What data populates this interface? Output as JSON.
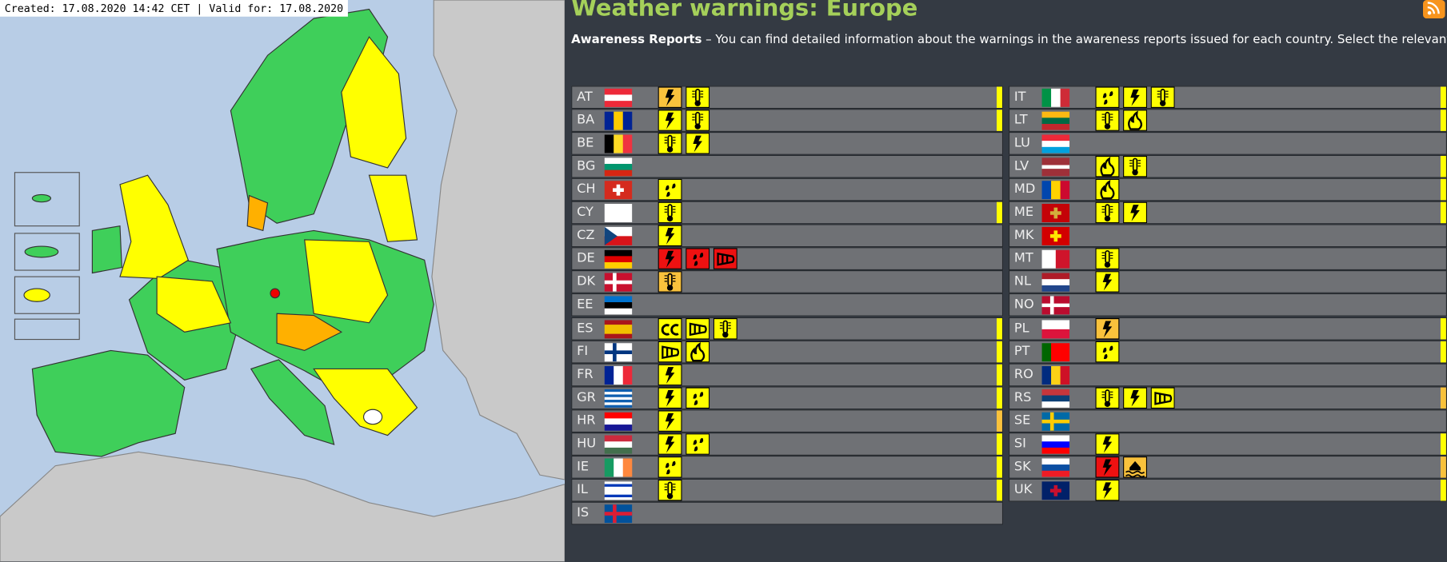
{
  "map": {
    "created_label": "Created: 17.08.2020 14:42 CET | Valid for: 17.08.2020"
  },
  "header": {
    "title": "Weather warnings: Europe",
    "intro_bold": "Awareness Reports",
    "intro_text": "– You can find detailed information about the warnings in the awareness reports issued for each country. Select the relevant country."
  },
  "columns": [
    [
      {
        "code": "AT",
        "flag": {
          "dir": "h",
          "colors": [
            "#ed2939",
            "#ffffff",
            "#ed2939"
          ]
        },
        "warnings": [
          {
            "icon": "lightning",
            "color": "#f9c23c"
          },
          {
            "icon": "thermometer",
            "color": "#ffff00"
          }
        ],
        "bar": "#ffff00"
      },
      {
        "code": "BA",
        "flag": {
          "dir": "v",
          "colors": [
            "#002395",
            "#fecb00",
            "#002395"
          ]
        },
        "warnings": [
          {
            "icon": "lightning",
            "color": "#ffff00"
          },
          {
            "icon": "thermometer",
            "color": "#ffff00"
          }
        ],
        "bar": "#ffff00"
      },
      {
        "code": "BE",
        "flag": {
          "dir": "v",
          "colors": [
            "#000000",
            "#fdda24",
            "#ef3340"
          ]
        },
        "warnings": [
          {
            "icon": "thermometer",
            "color": "#ffff00"
          },
          {
            "icon": "lightning",
            "color": "#ffff00"
          }
        ]
      },
      {
        "code": "BG",
        "flag": {
          "dir": "h",
          "colors": [
            "#ffffff",
            "#00966e",
            "#d62612"
          ]
        },
        "warnings": []
      },
      {
        "code": "CH",
        "flag": {
          "dir": "h",
          "colors": [
            "#d52b1e"
          ],
          "cross": "#ffffff",
          "cross_style": "center"
        },
        "warnings": [
          {
            "icon": "rain",
            "color": "#ffff00"
          }
        ]
      },
      {
        "code": "CY",
        "flag": {
          "dir": "h",
          "colors": [
            "#ffffff"
          ]
        },
        "warnings": [
          {
            "icon": "thermometer",
            "color": "#ffff00"
          }
        ],
        "bar": "#ffff00"
      },
      {
        "code": "CZ",
        "flag": {
          "dir": "h",
          "colors": [
            "#ffffff",
            "#d7141a"
          ],
          "triangle": "#11457e"
        },
        "warnings": [
          {
            "icon": "lightning",
            "color": "#ffff00"
          }
        ]
      },
      {
        "code": "DE",
        "flag": {
          "dir": "h",
          "colors": [
            "#000000",
            "#dd0000",
            "#ffce00"
          ]
        },
        "warnings": [
          {
            "icon": "lightning",
            "color": "#ee1111"
          },
          {
            "icon": "rain",
            "color": "#ee1111"
          },
          {
            "icon": "wind",
            "color": "#ee1111"
          }
        ]
      },
      {
        "code": "DK",
        "flag": {
          "dir": "h",
          "colors": [
            "#c8102e"
          ],
          "cross": "#ffffff",
          "cross_style": "nordic"
        },
        "warnings": [
          {
            "icon": "thermometer",
            "color": "#f9c23c"
          }
        ]
      },
      {
        "code": "EE",
        "flag": {
          "dir": "h",
          "colors": [
            "#0072ce",
            "#000000",
            "#ffffff"
          ]
        },
        "warnings": []
      },
      {
        "code": "ES",
        "flag": {
          "dir": "h",
          "colors": [
            "#aa151b",
            "#f1bf00",
            "#f1bf00",
            "#aa151b"
          ]
        },
        "warnings": [
          {
            "icon": "coastal",
            "color": "#ffff00"
          },
          {
            "icon": "wind",
            "color": "#ffff00"
          },
          {
            "icon": "thermometer",
            "color": "#ffff00"
          }
        ],
        "bar": "#ffff00"
      },
      {
        "code": "FI",
        "flag": {
          "dir": "h",
          "colors": [
            "#ffffff"
          ],
          "cross": "#003580",
          "cross_style": "nordic"
        },
        "warnings": [
          {
            "icon": "wind",
            "color": "#ffff00"
          },
          {
            "icon": "fire",
            "color": "#ffff00"
          }
        ],
        "bar": "#ffff00"
      },
      {
        "code": "FR",
        "flag": {
          "dir": "v",
          "colors": [
            "#002395",
            "#ffffff",
            "#ed2939"
          ]
        },
        "warnings": [
          {
            "icon": "lightning",
            "color": "#ffff00"
          }
        ],
        "bar": "#ffff00"
      },
      {
        "code": "GR",
        "flag": {
          "dir": "h",
          "colors": [
            "#0d5eaf",
            "#ffffff",
            "#0d5eaf",
            "#ffffff",
            "#0d5eaf",
            "#ffffff",
            "#0d5eaf"
          ]
        },
        "warnings": [
          {
            "icon": "lightning",
            "color": "#ffff00"
          },
          {
            "icon": "rain",
            "color": "#ffff00"
          }
        ],
        "bar": "#ffff00"
      },
      {
        "code": "HR",
        "flag": {
          "dir": "h",
          "colors": [
            "#ff0000",
            "#ffffff",
            "#171796"
          ]
        },
        "warnings": [
          {
            "icon": "lightning",
            "color": "#ffff00"
          }
        ],
        "bar": "#f9c23c"
      },
      {
        "code": "HU",
        "flag": {
          "dir": "h",
          "colors": [
            "#cd2a3e",
            "#ffffff",
            "#436f4d"
          ]
        },
        "warnings": [
          {
            "icon": "lightning",
            "color": "#ffff00"
          },
          {
            "icon": "rain",
            "color": "#ffff00"
          }
        ],
        "bar": "#ffff00"
      },
      {
        "code": "IE",
        "flag": {
          "dir": "v",
          "colors": [
            "#169b62",
            "#ffffff",
            "#ff883e"
          ]
        },
        "warnings": [
          {
            "icon": "rain",
            "color": "#ffff00"
          }
        ],
        "bar": "#ffff00"
      },
      {
        "code": "IL",
        "flag": {
          "dir": "h",
          "colors": [
            "#ffffff",
            "#0038b8",
            "#ffffff",
            "#ffffff",
            "#ffffff",
            "#0038b8",
            "#ffffff"
          ]
        },
        "warnings": [
          {
            "icon": "thermometer",
            "color": "#ffff00"
          }
        ],
        "bar": "#ffff00"
      },
      {
        "code": "IS",
        "flag": {
          "dir": "h",
          "colors": [
            "#02529c"
          ],
          "cross": "#dc1e35",
          "cross_style": "nordic"
        },
        "warnings": []
      }
    ],
    [
      {
        "code": "IT",
        "flag": {
          "dir": "v",
          "colors": [
            "#009246",
            "#ffffff",
            "#ce2b37"
          ]
        },
        "warnings": [
          {
            "icon": "rain",
            "color": "#ffff00"
          },
          {
            "icon": "lightning",
            "color": "#ffff00"
          },
          {
            "icon": "thermometer",
            "color": "#ffff00"
          }
        ],
        "bar": "#ffff00"
      },
      {
        "code": "LT",
        "flag": {
          "dir": "h",
          "colors": [
            "#fdb913",
            "#006a44",
            "#c1272d"
          ]
        },
        "warnings": [
          {
            "icon": "thermometer",
            "color": "#ffff00"
          },
          {
            "icon": "fire",
            "color": "#ffff00"
          }
        ],
        "bar": "#ffff00"
      },
      {
        "code": "LU",
        "flag": {
          "dir": "h",
          "colors": [
            "#ed2939",
            "#ffffff",
            "#00a1de"
          ]
        },
        "warnings": []
      },
      {
        "code": "LV",
        "flag": {
          "dir": "h",
          "colors": [
            "#9e3039",
            "#9e3039",
            "#ffffff",
            "#9e3039",
            "#9e3039"
          ]
        },
        "warnings": [
          {
            "icon": "fire",
            "color": "#ffff00"
          },
          {
            "icon": "thermometer",
            "color": "#ffff00"
          }
        ],
        "bar": "#ffff00"
      },
      {
        "code": "MD",
        "flag": {
          "dir": "v",
          "colors": [
            "#0046ae",
            "#ffd200",
            "#cc092f"
          ]
        },
        "warnings": [
          {
            "icon": "fire",
            "color": "#ffff00"
          }
        ],
        "bar": "#ffff00"
      },
      {
        "code": "ME",
        "flag": {
          "dir": "h",
          "colors": [
            "#c40308"
          ],
          "cross": "#d3ae3b",
          "cross_style": "center"
        },
        "warnings": [
          {
            "icon": "thermometer",
            "color": "#ffff00"
          },
          {
            "icon": "lightning",
            "color": "#ffff00"
          }
        ],
        "bar": "#ffff00"
      },
      {
        "code": "MK",
        "flag": {
          "dir": "h",
          "colors": [
            "#d20000"
          ],
          "cross": "#ffe600",
          "cross_style": "center"
        },
        "warnings": []
      },
      {
        "code": "MT",
        "flag": {
          "dir": "v",
          "colors": [
            "#ffffff",
            "#cf142b"
          ]
        },
        "warnings": [
          {
            "icon": "thermometer",
            "color": "#ffff00"
          }
        ]
      },
      {
        "code": "NL",
        "flag": {
          "dir": "h",
          "colors": [
            "#ae1c28",
            "#ffffff",
            "#21468b"
          ]
        },
        "warnings": [
          {
            "icon": "lightning",
            "color": "#ffff00"
          }
        ]
      },
      {
        "code": "NO",
        "flag": {
          "dir": "h",
          "colors": [
            "#ba0c2f"
          ],
          "cross": "#ffffff",
          "cross_style": "nordic"
        },
        "warnings": []
      },
      {
        "code": "PL",
        "flag": {
          "dir": "h",
          "colors": [
            "#ffffff",
            "#dc143c"
          ]
        },
        "warnings": [
          {
            "icon": "lightning",
            "color": "#f9c23c"
          }
        ],
        "bar": "#ffff00"
      },
      {
        "code": "PT",
        "flag": {
          "dir": "v",
          "colors": [
            "#006600",
            "#ff0000",
            "#ff0000"
          ]
        },
        "warnings": [
          {
            "icon": "rain",
            "color": "#ffff00"
          }
        ],
        "bar": "#ffff00"
      },
      {
        "code": "RO",
        "flag": {
          "dir": "v",
          "colors": [
            "#002b7f",
            "#fcd116",
            "#ce1126"
          ]
        },
        "warnings": []
      },
      {
        "code": "RS",
        "flag": {
          "dir": "h",
          "colors": [
            "#c6363c",
            "#0c4076",
            "#ffffff"
          ]
        },
        "warnings": [
          {
            "icon": "thermometer",
            "color": "#ffff00"
          },
          {
            "icon": "lightning",
            "color": "#ffff00"
          },
          {
            "icon": "wind",
            "color": "#ffff00"
          }
        ],
        "bar": "#f9c23c"
      },
      {
        "code": "SE",
        "flag": {
          "dir": "h",
          "colors": [
            "#006aa7"
          ],
          "cross": "#fecc00",
          "cross_style": "nordic"
        },
        "warnings": []
      },
      {
        "code": "SI",
        "flag": {
          "dir": "h",
          "colors": [
            "#ffffff",
            "#0000ff",
            "#ff0000"
          ]
        },
        "warnings": [
          {
            "icon": "lightning",
            "color": "#ffff00"
          }
        ],
        "bar": "#ffff00"
      },
      {
        "code": "SK",
        "flag": {
          "dir": "h",
          "colors": [
            "#ffffff",
            "#0b4ea2",
            "#ee1c25"
          ]
        },
        "warnings": [
          {
            "icon": "lightning",
            "color": "#ee1111"
          },
          {
            "icon": "flood",
            "color": "#f9c23c"
          }
        ],
        "bar": "#f9c23c"
      },
      {
        "code": "UK",
        "flag": {
          "dir": "h",
          "colors": [
            "#012169"
          ],
          "cross": "#c8102e",
          "cross_style": "center"
        },
        "warnings": [
          {
            "icon": "lightning",
            "color": "#ffff00"
          }
        ],
        "bar": "#ffff00"
      }
    ]
  ]
}
